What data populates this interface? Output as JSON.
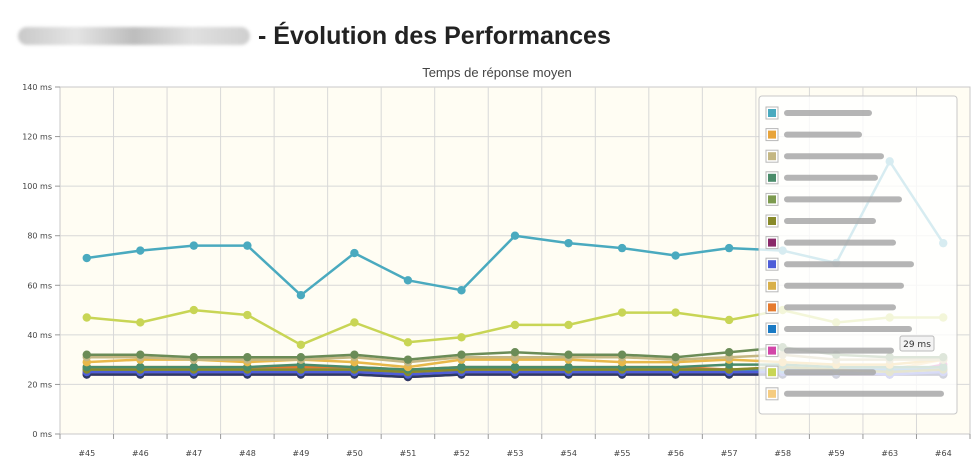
{
  "page": {
    "title": "- Évolution des Performances",
    "redacted_label": "redacted-site-name"
  },
  "chart_data": {
    "type": "line",
    "title": "Temps de réponse moyen",
    "xlabel": "",
    "ylabel": "",
    "categories": [
      "#45",
      "#46",
      "#47",
      "#48",
      "#49",
      "#50",
      "#51",
      "#52",
      "#53",
      "#54",
      "#55",
      "#56",
      "#57",
      "#58",
      "#59",
      "#63",
      "#64"
    ],
    "ylim": [
      0,
      140
    ],
    "y_ticks": [
      0,
      20,
      40,
      60,
      80,
      100,
      120,
      140
    ],
    "y_tick_labels": [
      "0 ms",
      "20 ms",
      "40 ms",
      "60 ms",
      "80 ms",
      "100 ms",
      "120 ms",
      "140 ms"
    ],
    "grid": true,
    "legend_position": "right",
    "tooltip": "29 ms",
    "series": [
      {
        "color": "#4aaabf",
        "values": [
          71,
          74,
          76,
          76,
          56,
          73,
          62,
          58,
          80,
          77,
          75,
          72,
          75,
          74,
          69,
          110,
          77
        ]
      },
      {
        "color": "#c8d555",
        "values": [
          47,
          45,
          50,
          48,
          36,
          45,
          37,
          39,
          44,
          44,
          49,
          49,
          46,
          50,
          45,
          47,
          47
        ]
      },
      {
        "color": "#6b8c57",
        "values": [
          32,
          32,
          31,
          31,
          31,
          32,
          30,
          32,
          33,
          32,
          32,
          31,
          33,
          35,
          32,
          31,
          31
        ]
      },
      {
        "color": "#c4b783",
        "values": [
          31,
          31,
          30,
          30,
          30,
          31,
          29,
          31,
          31,
          31,
          31,
          30,
          31,
          32,
          30,
          30,
          30
        ]
      },
      {
        "color": "#e8b84a",
        "values": [
          29,
          30,
          30,
          29,
          30,
          29,
          27,
          30,
          30,
          30,
          29,
          29,
          30,
          29,
          28,
          28,
          30
        ]
      },
      {
        "color": "#4a8c6a",
        "values": [
          27,
          27,
          27,
          27,
          28,
          27,
          26,
          27,
          27,
          27,
          27,
          27,
          28,
          28,
          27,
          27,
          27
        ]
      },
      {
        "color": "#888a2a",
        "values": [
          26,
          26,
          26,
          26,
          26,
          26,
          25,
          26,
          26,
          26,
          26,
          26,
          26,
          27,
          26,
          25,
          26
        ]
      },
      {
        "color": "#3a85c4",
        "values": [
          26,
          26,
          26,
          26,
          26,
          26,
          25,
          27,
          27,
          26,
          26,
          26,
          26,
          26,
          26,
          26,
          26
        ]
      },
      {
        "color": "#e57a2e",
        "values": [
          27,
          27,
          27,
          27,
          27,
          27,
          26,
          27,
          27,
          27,
          27,
          27,
          26,
          26,
          26,
          26,
          26
        ]
      },
      {
        "color": "#4e5ed8",
        "values": [
          25,
          25,
          25,
          25,
          25,
          25,
          24,
          25,
          25,
          25,
          25,
          25,
          25,
          25,
          25,
          24,
          25
        ]
      },
      {
        "color": "#2c3a66",
        "values": [
          24,
          24,
          24,
          24,
          24,
          24,
          23,
          24,
          24,
          24,
          24,
          24,
          24,
          24,
          24,
          24,
          24
        ]
      },
      {
        "color": "#8a2a6a",
        "values": [
          24,
          24,
          24,
          24,
          24,
          24,
          23,
          24,
          24,
          24,
          24,
          24,
          24,
          24,
          24,
          24,
          24
        ]
      },
      {
        "color": "#d246a8",
        "values": [
          25,
          25,
          25,
          25,
          25,
          25,
          24,
          25,
          25,
          25,
          25,
          25,
          25,
          25,
          24,
          24,
          28
        ]
      },
      {
        "color": "#f5cc80",
        "values": [
          26,
          26,
          26,
          26,
          27,
          26,
          24,
          26,
          26,
          26,
          26,
          26,
          26,
          27,
          27,
          26,
          30
        ]
      }
    ],
    "legend_swatches": [
      "#4aaabf",
      "#e8a43a",
      "#c4b783",
      "#4a8c6a",
      "#7c9a4e",
      "#888a2a",
      "#8a2a6a",
      "#4e5ed8",
      "#d8b04a",
      "#e57a2e",
      "#1a7ac4",
      "#d246a8",
      "#c8d555",
      "#f5cc80"
    ]
  }
}
